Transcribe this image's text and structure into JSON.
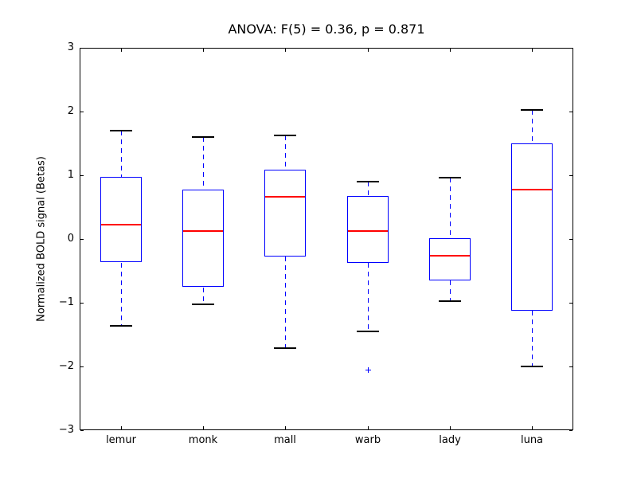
{
  "chart_data": {
    "type": "boxplot",
    "title": "ANOVA: F(5) = 0.36, p = 0.871",
    "xlabel": "",
    "ylabel": "Normalized BOLD signal (Betas)",
    "categories": [
      "lemur",
      "monk",
      "mall",
      "warb",
      "lady",
      "luna"
    ],
    "ylim": [
      -3,
      3
    ],
    "yticks": [
      -3,
      -2,
      -1,
      0,
      1,
      2,
      3
    ],
    "ytick_labels": [
      "−3",
      "−2",
      "−1",
      "0",
      "1",
      "2",
      "3"
    ],
    "grid": false,
    "legend": null,
    "boxes": [
      {
        "label": "lemur",
        "whislo": -1.36,
        "q1": -0.37,
        "med": 0.23,
        "q3": 0.97,
        "whishi": 1.7,
        "fliers": []
      },
      {
        "label": "monk",
        "whislo": -1.03,
        "q1": -0.76,
        "med": 0.13,
        "q3": 0.77,
        "whishi": 1.6,
        "fliers": []
      },
      {
        "label": "mall",
        "whislo": -1.71,
        "q1": -0.27,
        "med": 0.66,
        "q3": 1.09,
        "whishi": 1.62,
        "fliers": []
      },
      {
        "label": "warb",
        "whislo": -1.45,
        "q1": -0.38,
        "med": 0.12,
        "q3": 0.67,
        "whishi": 0.9,
        "fliers": [
          -2.05
        ]
      },
      {
        "label": "lady",
        "whislo": -0.98,
        "q1": -0.65,
        "med": -0.26,
        "q3": 0.01,
        "whishi": 0.96,
        "fliers": []
      },
      {
        "label": "luna",
        "whislo": -2.0,
        "q1": -1.12,
        "med": 0.77,
        "q3": 1.5,
        "whishi": 2.03,
        "fliers": []
      }
    ],
    "colors": {
      "box": "#0000ff",
      "median": "#ff0000",
      "whisker": "#0000ff",
      "cap": "#000000",
      "flier": "#0000ff",
      "axis": "#000000",
      "background": "#ffffff"
    }
  }
}
